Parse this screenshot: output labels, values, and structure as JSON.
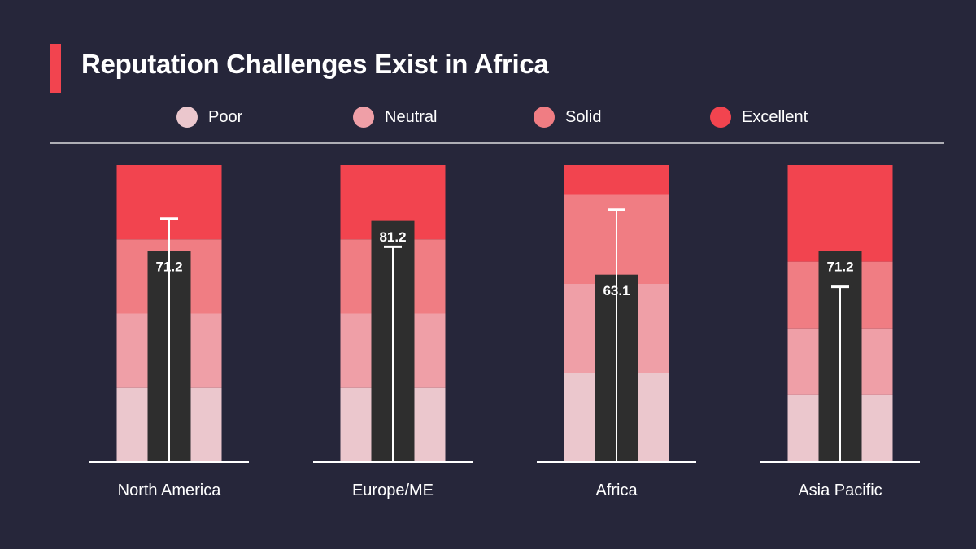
{
  "slide": {
    "title": "Reputation Challenges Exist in Africa",
    "accent_color": "#f2444f",
    "background_color": "#26263a"
  },
  "chart_data": {
    "type": "bar",
    "title": "Reputation Challenges Exist in Africa",
    "categories": [
      "North America",
      "Europe/ME",
      "Africa",
      "Asia Pacific"
    ],
    "bands": [
      {
        "name": "Poor",
        "color": "#ebc7cd"
      },
      {
        "name": "Neutral",
        "color": "#ef9fa7"
      },
      {
        "name": "Solid",
        "color": "#f07d83"
      },
      {
        "name": "Excellent",
        "color": "#f2444f"
      }
    ],
    "band_thresholds": [
      [
        25,
        50,
        75,
        100
      ],
      [
        25,
        50,
        75,
        100
      ],
      [
        30,
        60,
        90,
        100
      ],
      [
        22.5,
        45,
        67.5,
        100
      ]
    ],
    "values": [
      71.2,
      81.2,
      63.1,
      71.2
    ],
    "value_labels": [
      "71.2",
      "81.2",
      "63.1",
      "71.2"
    ],
    "targets": [
      82,
      72.5,
      85,
      59
    ],
    "bar_color": "#2e2e2e",
    "ylim": [
      0,
      100
    ],
    "legend_position": "top",
    "grid": false
  }
}
